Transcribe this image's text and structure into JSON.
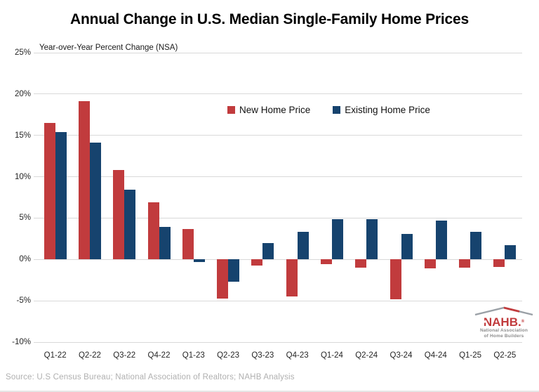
{
  "header": {
    "title": "Annual Change in U.S. Median Single-Family Home Prices",
    "subtitle": "Year-over-Year Percent Change (NSA)"
  },
  "footer": {
    "source": "Source: U.S Census Bureau; National Association of Realtors; NAHB Analysis"
  },
  "logo": {
    "wordmark": "NAHB.",
    "registered": "®",
    "star_icon": "★",
    "line1": "National Association",
    "line2": "of Home Builders"
  },
  "colors": {
    "new_home": "#c13b3d",
    "existing_home": "#16436e",
    "gridline": "#d9d9d9",
    "axis_text": "#262626",
    "source_text": "#b0b0b0",
    "logo_gray": "#8c8c8c"
  },
  "chart_data": {
    "type": "bar",
    "title": "Annual Change in U.S. Median Single-Family Home Prices",
    "ylabel": "Year-over-Year Percent Change (NSA)",
    "xlabel": "",
    "ylim": [
      -10,
      25
    ],
    "ytick_step": 5,
    "ytick_format": "percent",
    "grid": true,
    "legend_position": "top-center-inside",
    "categories": [
      "Q1-22",
      "Q2-22",
      "Q3-22",
      "Q4-22",
      "Q1-23",
      "Q2-23",
      "Q3-23",
      "Q4-23",
      "Q1-24",
      "Q2-24",
      "Q3-24",
      "Q4-24",
      "Q1-25",
      "Q2-25"
    ],
    "series": [
      {
        "name": "New Home Price",
        "color": "#c13b3d",
        "values": [
          16.5,
          19.1,
          10.8,
          6.9,
          3.7,
          -4.7,
          -0.7,
          -4.5,
          -0.6,
          -1.0,
          -4.8,
          -1.1,
          -1.0,
          -0.9
        ]
      },
      {
        "name": "Existing Home Price",
        "color": "#16436e",
        "values": [
          15.4,
          14.1,
          8.4,
          3.9,
          -0.3,
          -2.7,
          2.0,
          3.3,
          4.9,
          4.9,
          3.1,
          4.7,
          3.3,
          1.7
        ]
      }
    ]
  }
}
